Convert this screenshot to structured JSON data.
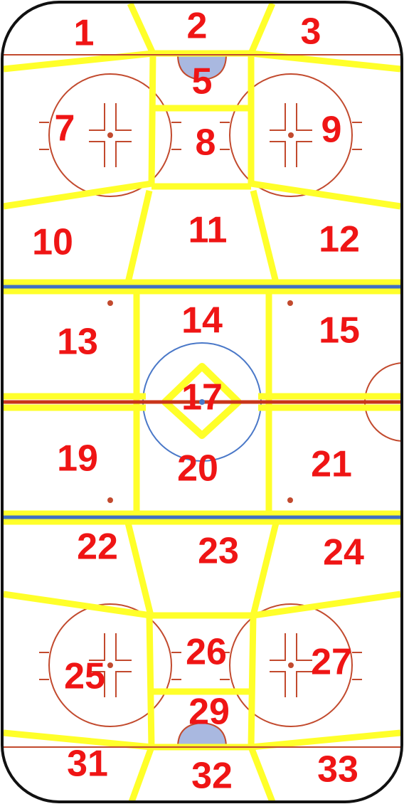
{
  "diagram": {
    "colors": {
      "board": "#111111",
      "ice": "#ffffff",
      "zone_line": "#ffff2a",
      "red_line": "#c8341a",
      "blue_line": "#3f6fc4",
      "thin_red": "#c24a2e",
      "crease_fill": "#a9b8e0",
      "center_circle": "#4a78c8",
      "label": "#ef1515"
    },
    "zones": [
      {
        "id": "1",
        "label": "1"
      },
      {
        "id": "2",
        "label": "2"
      },
      {
        "id": "3",
        "label": "3"
      },
      {
        "id": "5",
        "label": "5"
      },
      {
        "id": "7",
        "label": "7"
      },
      {
        "id": "8",
        "label": "8"
      },
      {
        "id": "9",
        "label": "9"
      },
      {
        "id": "10",
        "label": "10"
      },
      {
        "id": "11",
        "label": "11"
      },
      {
        "id": "12",
        "label": "12"
      },
      {
        "id": "13",
        "label": "13"
      },
      {
        "id": "14",
        "label": "14"
      },
      {
        "id": "15",
        "label": "15"
      },
      {
        "id": "17",
        "label": "17"
      },
      {
        "id": "19",
        "label": "19"
      },
      {
        "id": "20",
        "label": "20"
      },
      {
        "id": "21",
        "label": "21"
      },
      {
        "id": "22",
        "label": "22"
      },
      {
        "id": "23",
        "label": "23"
      },
      {
        "id": "24",
        "label": "24"
      },
      {
        "id": "25",
        "label": "25"
      },
      {
        "id": "26",
        "label": "26"
      },
      {
        "id": "27",
        "label": "27"
      },
      {
        "id": "29",
        "label": "29"
      },
      {
        "id": "31",
        "label": "31"
      },
      {
        "id": "32",
        "label": "32"
      },
      {
        "id": "33",
        "label": "33"
      }
    ]
  }
}
